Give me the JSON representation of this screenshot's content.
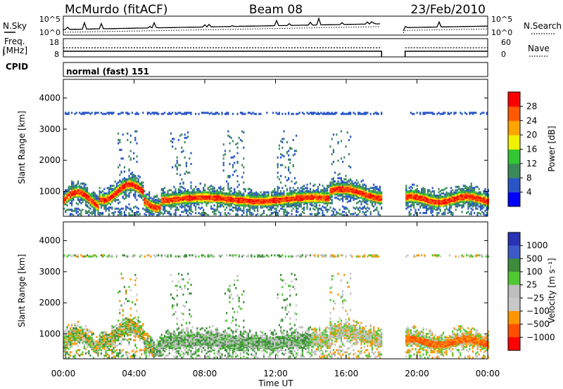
{
  "header": {
    "station": "McMurdo (fitACF)",
    "beam": "Beam 08",
    "date": "23/Feb/2010"
  },
  "top_panels": {
    "nsky_label": "N.Sky",
    "nsearch_label": "N.Search",
    "nsky_ticks": [
      "10^5",
      "10^0"
    ],
    "nsearch_ticks": [
      "10^5",
      "10^0"
    ],
    "freq_label_1": "Freq.",
    "freq_label_2": "[MHz]",
    "freq_ticks": [
      "18",
      "8"
    ],
    "nave_label": "Nave",
    "nave_ticks": [
      "60",
      "0"
    ],
    "cpid_label": "CPID",
    "cpid_value": "normal (fast) 151"
  },
  "colors": {
    "power": [
      "#0000ff",
      "#2955c8",
      "#3a8a5a",
      "#33c633",
      "#f0f000",
      "#ffa500",
      "#ff5a00",
      "#ff0000"
    ],
    "velocity": [
      "#ff0000",
      "#ff5000",
      "#ff9600",
      "#c8c8c8",
      "#bebebe",
      "#50c832",
      "#3c8c3c",
      "#3c5ac8",
      "#2832b4"
    ]
  },
  "chart_data": [
    {
      "type": "heatmap",
      "name": "power",
      "ylabel": "Slant Range [km]",
      "xlabel": "Time UT",
      "ylim": [
        200,
        4600
      ],
      "yticks": [
        1000,
        2000,
        3000,
        4000
      ],
      "xticks_hours": [
        0,
        4,
        8,
        12,
        16,
        20,
        24
      ],
      "xtick_labels": [
        "00:00",
        "04:00",
        "08:00",
        "12:00",
        "16:00",
        "20:00",
        "00:00"
      ],
      "data_gap_ut": [
        "18:00",
        "19:20"
      ],
      "colorbar_label": "Power [dB]",
      "colorbar_ticks": [
        "4",
        "8",
        "12",
        "16",
        "20",
        "24",
        "28"
      ],
      "colorbar_range": [
        0,
        32
      ]
    },
    {
      "type": "heatmap",
      "name": "velocity",
      "ylabel": "Slant Range [km]",
      "xlabel": "Time UT",
      "ylim": [
        200,
        4600
      ],
      "yticks": [
        1000,
        2000,
        3000,
        4000
      ],
      "xticks_hours": [
        0,
        4,
        8,
        12,
        16,
        20,
        24
      ],
      "xtick_labels": [
        "00:00",
        "04:00",
        "08:00",
        "12:00",
        "16:00",
        "20:00",
        "00:00"
      ],
      "data_gap_ut": [
        "18:00",
        "19:20"
      ],
      "colorbar_label": "Velocity [m s⁻¹]",
      "colorbar_ticks": [
        "1000",
        "500",
        "100",
        "25",
        "−25",
        "−100",
        "−500",
        "−1000"
      ]
    }
  ],
  "xaxis_title": "Time UT"
}
